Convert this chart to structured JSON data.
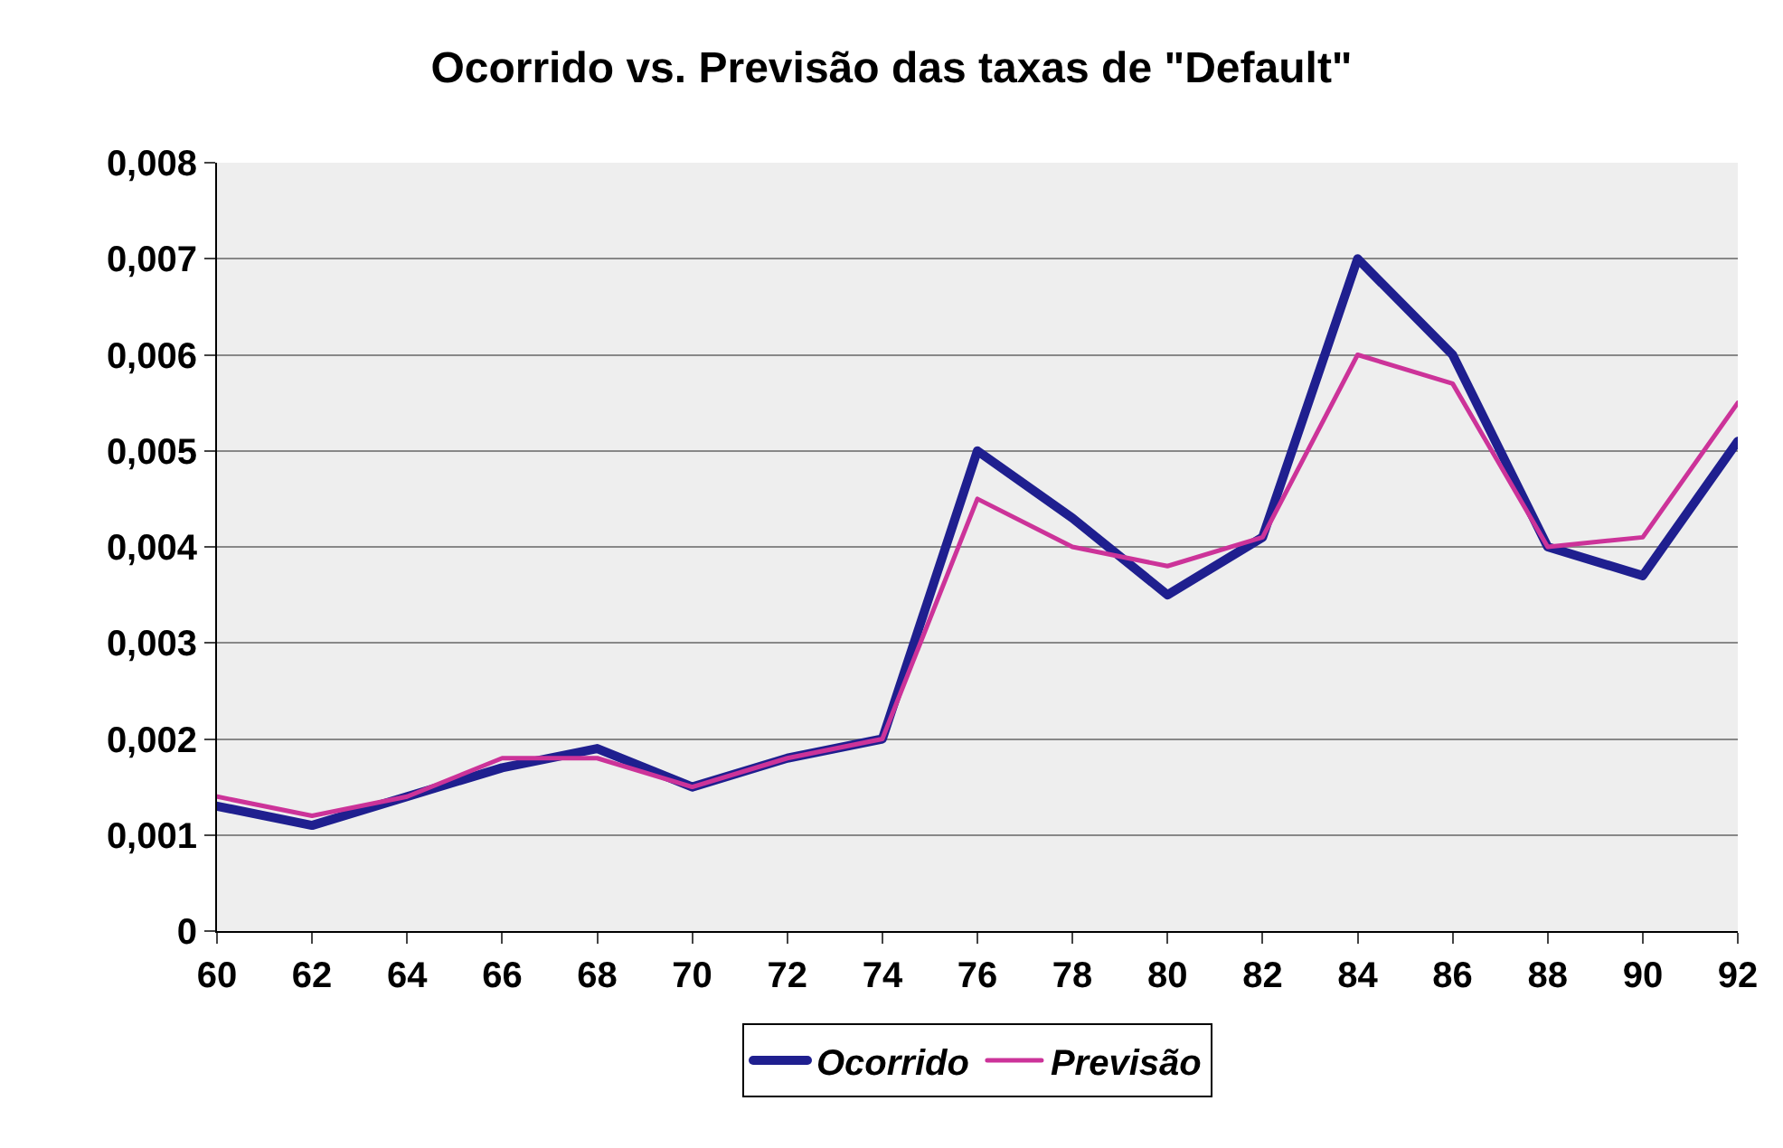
{
  "chart_data": {
    "type": "line",
    "title": "Ocorrido vs. Previsão das taxas de \"Default\"",
    "categories": [
      "60",
      "62",
      "64",
      "66",
      "68",
      "70",
      "72",
      "74",
      "76",
      "78",
      "80",
      "82",
      "84",
      "86",
      "88",
      "90",
      "92"
    ],
    "series": [
      {
        "name": "Ocorrido",
        "color": "#1f1f8f",
        "values": [
          0.0013,
          0.0011,
          0.0014,
          0.0017,
          0.0019,
          0.0015,
          0.0018,
          0.002,
          0.005,
          0.0043,
          0.0035,
          0.0041,
          0.007,
          0.006,
          0.004,
          0.0037,
          0.0051
        ]
      },
      {
        "name": "Previsão",
        "color": "#cc3399",
        "values": [
          0.0014,
          0.0012,
          0.0014,
          0.0018,
          0.0018,
          0.0015,
          0.0018,
          0.002,
          0.0045,
          0.004,
          0.0038,
          0.0041,
          0.006,
          0.0057,
          0.004,
          0.0041,
          0.0055
        ]
      }
    ],
    "ylim": [
      0,
      0.008
    ],
    "yticks": [
      0,
      {
        "value": 0.001,
        "label": "0,001"
      },
      {
        "value": 0.002,
        "label": "0,002"
      },
      {
        "value": 0.003,
        "label": "0,003"
      },
      {
        "value": 0.004,
        "label": "0,004"
      },
      {
        "value": 0.005,
        "label": "0,005"
      },
      {
        "value": 0.006,
        "label": "0,006"
      },
      {
        "value": 0.007,
        "label": "0,007"
      },
      {
        "value": 0.008,
        "label": "0,008"
      }
    ],
    "grid": "y",
    "legend": "bottom",
    "marker": "none",
    "line_style": "solid"
  }
}
